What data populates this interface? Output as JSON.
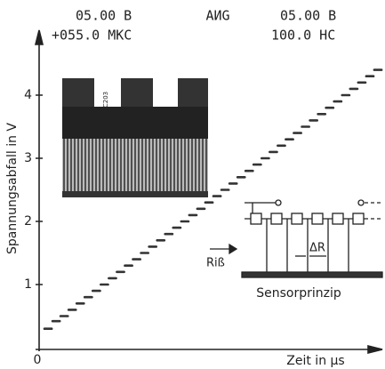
{
  "chart_data": {
    "type": "step",
    "header": [
      "05.00 B",
      "+055.0 MKC",
      "AИG",
      "05.00 B",
      "100.0 HC"
    ],
    "ylabel": "Spannungsabfall in V",
    "xlabel": "Zeit in µs",
    "values": [
      0.3,
      0.42,
      0.5,
      0.6,
      0.7,
      0.8,
      0.9,
      1.0,
      1.1,
      1.2,
      1.3,
      1.4,
      1.5,
      1.6,
      1.7,
      1.8,
      1.9,
      2.0,
      2.1,
      2.2,
      2.3,
      2.4,
      2.5,
      2.6,
      2.7,
      2.8,
      2.9,
      3.0,
      3.1,
      3.2,
      3.3,
      3.4,
      3.5,
      3.6,
      3.7,
      3.8,
      3.9,
      4.0,
      4.1,
      4.2,
      4.3,
      4.4
    ],
    "color": "#333333",
    "ylim": [
      0,
      5
    ],
    "yticks": [
      0,
      1,
      2,
      3,
      4
    ],
    "annotations": {
      "chip_label": "C203",
      "crack": "Riß",
      "delta_r": "ΔR",
      "caption": "Sensorprinzip"
    }
  }
}
